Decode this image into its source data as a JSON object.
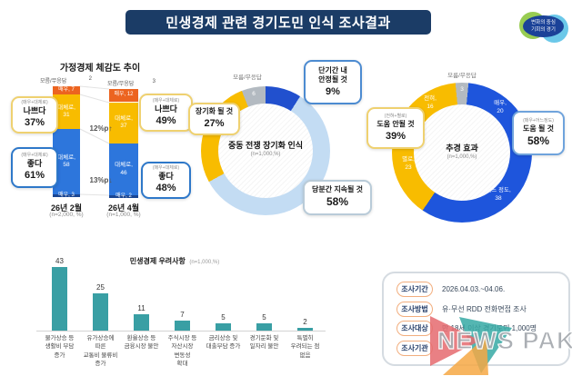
{
  "header": {
    "title": "민생경제 관련 경기도민 인식 조사결과",
    "logo": {
      "line1": "변화의 중심",
      "line2": "기회의 경기"
    }
  },
  "colors": {
    "header_bg": "#1B3C66",
    "unknown_gray": "#B3BAC1",
    "concern_bar": "#399FA4",
    "callout_yellow": "#EFD170",
    "callout_blue": "#2E78C9",
    "watermark_pink": "#E56A6E",
    "watermark_teal": "#36A9A5",
    "watermark_orange": "#F6A844"
  },
  "chart_data": [
    {
      "id": "trend",
      "type": "bar",
      "subtype": "stacked-column",
      "title": "가정경제 체감도 추이",
      "categories": [
        "26년 2월",
        "26년 4월"
      ],
      "category_notes": [
        "(n=2,000, %)",
        "(n=1,000, %)"
      ],
      "unknown_label": "모름/무응답",
      "unknown_values": [
        2,
        3
      ],
      "series": [
        {
          "name": "매우 나쁘다",
          "seg_label": "매우",
          "color": "#EC6420",
          "values": [
            7,
            12
          ]
        },
        {
          "name": "대체로 나쁘다",
          "seg_label": "대체로",
          "color": "#F8BC00",
          "values": [
            31,
            37
          ]
        },
        {
          "name": "대체로 좋다",
          "seg_label": "대체로",
          "color": "#2D76DC",
          "values": [
            58,
            46
          ]
        },
        {
          "name": "매우 좋다",
          "seg_label": "매우",
          "color": "#1A4693",
          "values": [
            3,
            2
          ]
        }
      ],
      "deltas": [
        "12%p↑",
        "13%p↓"
      ],
      "callouts": [
        {
          "sub": "(매우+대체로)",
          "label": "나쁘다",
          "pct": "37%"
        },
        {
          "sub": "(매우+대체로)",
          "label": "좋다",
          "pct": "61%"
        },
        {
          "sub": "(매우+대체로)",
          "label": "나쁘다",
          "pct": "49%"
        },
        {
          "sub": "(매우+대체로)",
          "label": "좋다",
          "pct": "48%"
        }
      ]
    },
    {
      "id": "war_donut",
      "type": "pie",
      "title": "중동 전쟁 장기화 인식",
      "n_label": "(n=1,000,%)",
      "start_angle": -21.6,
      "slices": [
        {
          "label": "모름/무응답",
          "value": 6,
          "color": "#B3BAC1"
        },
        {
          "label": "단기간 내 안정될 것",
          "value": 9,
          "color": "#2150CE",
          "callout_lines": [
            "단기간 내",
            "안정될 것"
          ],
          "pct": "9%"
        },
        {
          "label": "당분간 지속될 것",
          "value": 58,
          "color": "#C3DCF3",
          "callout_lines": [
            "당분간 지속될 것"
          ],
          "pct": "58%"
        },
        {
          "label": "장기화 될 것",
          "value": 27,
          "color": "#F8BC00",
          "callout_lines": [
            "장기화 될 것"
          ],
          "pct": "27%"
        }
      ]
    },
    {
      "id": "budget_donut",
      "type": "pie",
      "title": "추경 효과",
      "n_label": "(n=1,000,%)",
      "start_angle": -5.4,
      "slices": [
        {
          "label": "모름/무응답",
          "value": 3,
          "color": "#B3BAC1"
        },
        {
          "label": "매우",
          "value": 20,
          "color": "#1E55DC",
          "tag_lines": [
            "매우,",
            "20"
          ]
        },
        {
          "label": "어느 정도",
          "value": 38,
          "color": "#1E55DC",
          "tag_lines": [
            "어느 정도,",
            "38"
          ]
        },
        {
          "label": "별로",
          "value": 23,
          "color": "#F8BC00",
          "tag_lines": [
            "별로,",
            "23"
          ]
        },
        {
          "label": "전혀",
          "value": 16,
          "color": "#F8BC00",
          "tag_lines": [
            "전혀,",
            "16"
          ]
        }
      ],
      "groups": [
        {
          "sub": "(전혀+별로)",
          "label": "도움 안될 것",
          "pct": "39%"
        },
        {
          "sub": "(매우+어느정도)",
          "label": "도움 될 것",
          "pct": "58%"
        }
      ]
    },
    {
      "id": "concerns",
      "type": "bar",
      "title": "민생경제 우려사항",
      "n_label": "(n=1,000,%)",
      "bar_color": "#399FA4",
      "values": [
        43,
        25,
        11,
        7,
        5,
        5,
        2
      ],
      "categories": [
        [
          "물가상승 등",
          "생활비 부담",
          "증가"
        ],
        [
          "유가상승에",
          "따른",
          "교통비 물류비",
          "증가"
        ],
        [
          "환율상승 등",
          "금융시장 불안"
        ],
        [
          "주식시장 등",
          "자산시장",
          "변동성",
          "확대"
        ],
        [
          "금리상승 및",
          "대출부담 증가"
        ],
        [
          "경기둔화 및",
          "일자리 불안"
        ],
        [
          "특별히",
          "우려되는 점",
          "없음"
        ]
      ]
    }
  ],
  "survey_info": {
    "rows": [
      {
        "label": "조사기간",
        "value": "2026.04.03.~04.06."
      },
      {
        "label": "조사방법",
        "value": "유·무선 RDD 전화면접 조사"
      },
      {
        "label": "조사대상",
        "value": "만 18세 이상 경기도민 1,000명"
      },
      {
        "label": "조사기관",
        "value": ""
      }
    ]
  },
  "watermark": {
    "text": "NEWS PAK"
  }
}
